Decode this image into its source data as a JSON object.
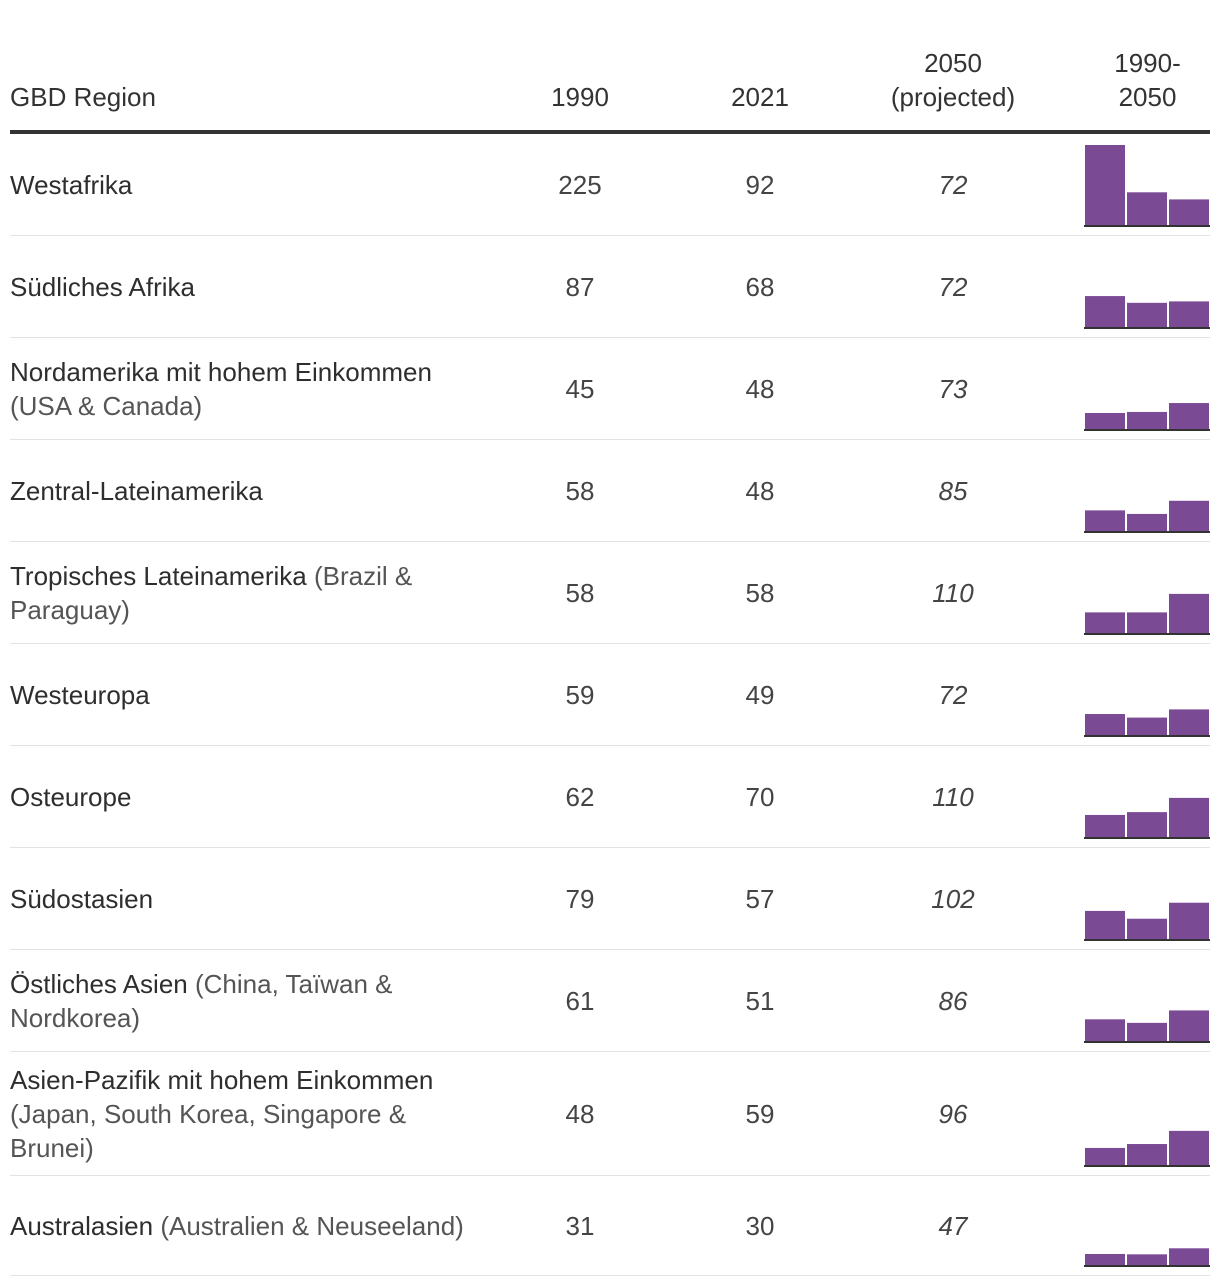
{
  "chart_data": {
    "type": "table",
    "columns": {
      "region": "GBD Region",
      "y1990": "1990",
      "y2021": "2021",
      "y2050_line1": "2050",
      "y2050_line2": "(projected)",
      "spark_line1": "1990-",
      "spark_line2": "2050"
    },
    "spark_max": 225,
    "colors": {
      "bar": "#7b4a94",
      "baseline": "#333333",
      "rule": "#333333",
      "divider": "#e2e2e2"
    },
    "rows": [
      {
        "name": "Westafrika",
        "note": "",
        "values": [
          225,
          92,
          72
        ]
      },
      {
        "name": "Südliches Afrika",
        "note": "",
        "values": [
          87,
          68,
          72
        ]
      },
      {
        "name": "Nordamerika mit hohem Einkommen",
        "note": "(USA & Canada)",
        "values": [
          45,
          48,
          73
        ]
      },
      {
        "name": "Zentral-Lateinamerika",
        "note": "",
        "values": [
          58,
          48,
          85
        ]
      },
      {
        "name": "Tropisches Lateinamerika",
        "note": "(Brazil & Paraguay)",
        "values": [
          58,
          58,
          110
        ]
      },
      {
        "name": "Westeuropa",
        "note": "",
        "values": [
          59,
          49,
          72
        ]
      },
      {
        "name": "Osteurope",
        "note": "",
        "values": [
          62,
          70,
          110
        ]
      },
      {
        "name": "Südostasien",
        "note": "",
        "values": [
          79,
          57,
          102
        ]
      },
      {
        "name": "Östliches Asien",
        "note": "(China, Taïwan & Nordkorea)",
        "values": [
          61,
          51,
          86
        ]
      },
      {
        "name": "Asien-Pazifik mit hohem Einkommen",
        "note": "(Japan, South Korea, Singapore & Brunei)",
        "values": [
          48,
          59,
          96
        ]
      },
      {
        "name": "Australasien",
        "note": "(Australien & Neuseeland)",
        "values": [
          31,
          30,
          47
        ]
      }
    ]
  }
}
